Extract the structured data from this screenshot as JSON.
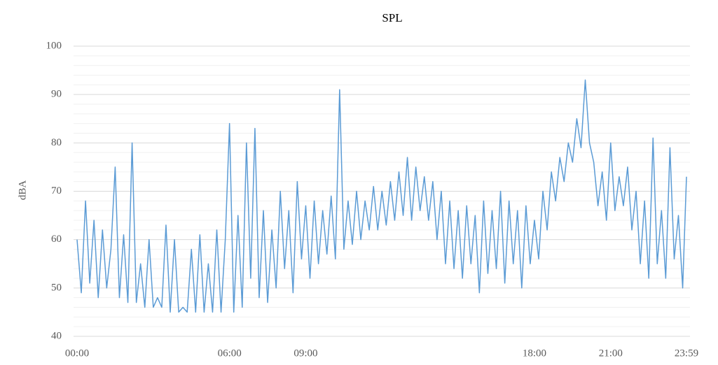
{
  "chart_data": {
    "type": "line",
    "title": "SPL",
    "y_label": "dBA",
    "x": [
      "00:00",
      "00:10",
      "00:20",
      "00:30",
      "00:40",
      "00:50",
      "01:00",
      "01:10",
      "01:20",
      "01:30",
      "01:40",
      "01:50",
      "02:00",
      "02:10",
      "02:20",
      "02:30",
      "02:40",
      "02:50",
      "03:00",
      "03:10",
      "03:20",
      "03:30",
      "03:40",
      "03:50",
      "04:00",
      "04:10",
      "04:20",
      "04:30",
      "04:40",
      "04:50",
      "05:00",
      "05:10",
      "05:20",
      "05:30",
      "05:40",
      "05:50",
      "06:00",
      "06:10",
      "06:20",
      "06:30",
      "06:40",
      "06:50",
      "07:00",
      "07:10",
      "07:20",
      "07:30",
      "07:40",
      "07:50",
      "08:00",
      "08:10",
      "08:20",
      "08:30",
      "08:40",
      "08:50",
      "09:00",
      "09:10",
      "09:20",
      "09:30",
      "09:40",
      "09:50",
      "10:00",
      "10:10",
      "10:20",
      "10:30",
      "10:40",
      "10:50",
      "11:00",
      "11:10",
      "11:20",
      "11:30",
      "11:40",
      "11:50",
      "12:00",
      "12:10",
      "12:20",
      "12:30",
      "12:40",
      "12:50",
      "13:00",
      "13:10",
      "13:20",
      "13:30",
      "13:40",
      "13:50",
      "14:00",
      "14:10",
      "14:20",
      "14:30",
      "14:40",
      "14:50",
      "15:00",
      "15:10",
      "15:20",
      "15:30",
      "15:40",
      "15:50",
      "16:00",
      "16:10",
      "16:20",
      "16:30",
      "16:40",
      "16:50",
      "17:00",
      "17:10",
      "17:20",
      "17:30",
      "17:40",
      "17:50",
      "18:00",
      "18:10",
      "18:20",
      "18:30",
      "18:40",
      "18:50",
      "19:00",
      "19:10",
      "19:20",
      "19:30",
      "19:40",
      "19:50",
      "20:00",
      "20:10",
      "20:20",
      "20:30",
      "20:40",
      "20:50",
      "21:00",
      "21:10",
      "21:20",
      "21:30",
      "21:40",
      "21:50",
      "22:00",
      "22:10",
      "22:20",
      "22:30",
      "22:40",
      "22:50",
      "23:00",
      "23:10",
      "23:20",
      "23:30",
      "23:40",
      "23:50",
      "23:59"
    ],
    "series": [
      {
        "name": "SPL",
        "color": "#5b9bd5",
        "values": [
          60,
          49,
          68,
          51,
          64,
          48,
          62,
          50,
          58,
          75,
          48,
          61,
          47,
          80,
          47,
          55,
          46,
          60,
          46,
          48,
          46,
          63,
          45,
          60,
          45,
          46,
          45,
          58,
          45,
          61,
          45,
          55,
          45,
          62,
          45,
          60,
          84,
          45,
          65,
          46,
          80,
          52,
          83,
          48,
          66,
          47,
          62,
          50,
          70,
          54,
          66,
          49,
          72,
          56,
          67,
          52,
          68,
          55,
          66,
          57,
          69,
          56,
          91,
          58,
          68,
          59,
          70,
          60,
          68,
          62,
          71,
          62,
          70,
          63,
          72,
          64,
          74,
          65,
          77,
          64,
          75,
          66,
          73,
          64,
          72,
          60,
          70,
          55,
          68,
          54,
          66,
          52,
          67,
          55,
          65,
          49,
          68,
          53,
          66,
          54,
          70,
          51,
          68,
          55,
          66,
          50,
          67,
          55,
          64,
          56,
          70,
          62,
          74,
          68,
          77,
          72,
          80,
          76,
          85,
          79,
          93,
          80,
          76,
          67,
          74,
          64,
          80,
          66,
          73,
          67,
          75,
          62,
          70,
          55,
          68,
          52,
          81,
          55,
          66,
          52,
          79,
          56,
          65,
          50,
          73
        ]
      }
    ],
    "xticks": [
      "00:00",
      "06:00",
      "09:00",
      "18:00",
      "21:00",
      "23:59"
    ],
    "ylim": [
      40,
      100
    ],
    "yticks": [
      40,
      50,
      60,
      70,
      80,
      90,
      100
    ],
    "yminorticks": [
      42,
      44,
      46,
      48,
      52,
      54,
      56,
      58,
      62,
      64,
      66,
      68,
      72,
      74,
      76,
      78,
      82,
      84,
      86,
      88,
      92,
      94,
      96,
      98
    ],
    "grid": true
  }
}
